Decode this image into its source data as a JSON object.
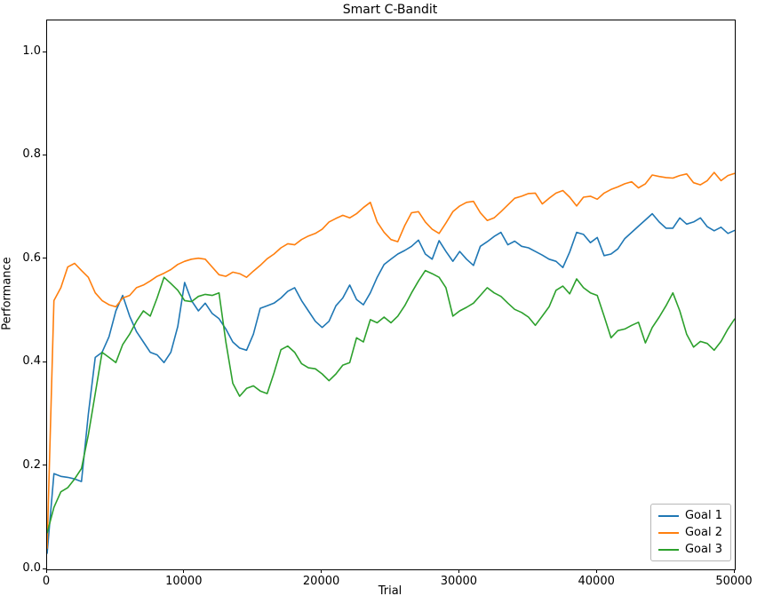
{
  "chart_data": {
    "type": "line",
    "title": "Smart C-Bandit",
    "xlabel": "Trial",
    "ylabel": "Performance",
    "xlim": [
      0,
      50000
    ],
    "ylim": [
      0,
      1.062
    ],
    "grid": false,
    "legend_position": "lower right",
    "x_ticks": [
      "0",
      "10000",
      "20000",
      "30000",
      "40000",
      "50000"
    ],
    "y_ticks": [
      "0.0",
      "0.2",
      "0.4",
      "0.6",
      "0.8",
      "1.0"
    ],
    "axis_color": "#000000",
    "background_color": "#ffffff",
    "x": [
      0,
      500,
      1000,
      1500,
      2000,
      2500,
      3000,
      3500,
      4000,
      4500,
      5000,
      5500,
      6000,
      6500,
      7000,
      7500,
      8000,
      8500,
      9000,
      9500,
      10000,
      10500,
      11000,
      11500,
      12000,
      12500,
      13000,
      13500,
      14000,
      14500,
      15000,
      15500,
      16000,
      16500,
      17000,
      17500,
      18000,
      18500,
      19000,
      19500,
      20000,
      20500,
      21000,
      21500,
      22000,
      22500,
      23000,
      23500,
      24000,
      24500,
      25000,
      25500,
      26000,
      26500,
      27000,
      27500,
      28000,
      28500,
      29000,
      29500,
      30000,
      30500,
      31000,
      31500,
      32000,
      32500,
      33000,
      33500,
      34000,
      34500,
      35000,
      35500,
      36000,
      36500,
      37000,
      37500,
      38000,
      38500,
      39000,
      39500,
      40000,
      40500,
      41000,
      41500,
      42000,
      42500,
      43000,
      43500,
      44000,
      44500,
      45000,
      45500,
      46000,
      46500,
      47000,
      47500,
      48000,
      48500,
      49000,
      49500,
      50000
    ],
    "series": [
      {
        "name": "Goal 1",
        "color": "#1f77b4",
        "values": [
          0.03,
          0.185,
          0.18,
          0.178,
          0.175,
          0.17,
          0.3,
          0.41,
          0.42,
          0.45,
          0.5,
          0.53,
          0.49,
          0.46,
          0.44,
          0.42,
          0.415,
          0.4,
          0.42,
          0.47,
          0.555,
          0.52,
          0.5,
          0.515,
          0.495,
          0.485,
          0.465,
          0.44,
          0.428,
          0.424,
          0.455,
          0.505,
          0.51,
          0.515,
          0.525,
          0.538,
          0.545,
          0.52,
          0.5,
          0.48,
          0.468,
          0.48,
          0.51,
          0.525,
          0.55,
          0.522,
          0.512,
          0.535,
          0.565,
          0.59,
          0.6,
          0.61,
          0.617,
          0.625,
          0.637,
          0.61,
          0.6,
          0.636,
          0.615,
          0.596,
          0.615,
          0.6,
          0.588,
          0.625,
          0.634,
          0.644,
          0.652,
          0.628,
          0.635,
          0.625,
          0.622,
          0.615,
          0.608,
          0.6,
          0.596,
          0.584,
          0.614,
          0.652,
          0.648,
          0.632,
          0.642,
          0.607,
          0.61,
          0.62,
          0.64,
          0.652,
          0.664,
          0.676,
          0.688,
          0.672,
          0.66,
          0.66,
          0.68,
          0.668,
          0.672,
          0.68,
          0.663,
          0.655,
          0.662,
          0.65,
          0.656
        ]
      },
      {
        "name": "Goal 2",
        "color": "#ff7f0e",
        "values": [
          0.04,
          0.52,
          0.545,
          0.585,
          0.592,
          0.578,
          0.565,
          0.535,
          0.52,
          0.512,
          0.508,
          0.525,
          0.53,
          0.545,
          0.55,
          0.558,
          0.567,
          0.573,
          0.58,
          0.59,
          0.596,
          0.6,
          0.602,
          0.6,
          0.585,
          0.57,
          0.567,
          0.575,
          0.572,
          0.565,
          0.577,
          0.588,
          0.601,
          0.61,
          0.622,
          0.63,
          0.628,
          0.638,
          0.645,
          0.65,
          0.658,
          0.672,
          0.679,
          0.685,
          0.68,
          0.688,
          0.7,
          0.71,
          0.672,
          0.652,
          0.638,
          0.634,
          0.665,
          0.69,
          0.692,
          0.672,
          0.658,
          0.65,
          0.67,
          0.692,
          0.703,
          0.71,
          0.712,
          0.69,
          0.675,
          0.68,
          0.692,
          0.705,
          0.718,
          0.722,
          0.727,
          0.728,
          0.707,
          0.718,
          0.728,
          0.733,
          0.72,
          0.703,
          0.72,
          0.722,
          0.716,
          0.728,
          0.735,
          0.74,
          0.746,
          0.75,
          0.738,
          0.746,
          0.763,
          0.76,
          0.758,
          0.757,
          0.762,
          0.765,
          0.748,
          0.744,
          0.752,
          0.768,
          0.752,
          0.762,
          0.766
        ]
      },
      {
        "name": "Goal 3",
        "color": "#2ca02c",
        "values": [
          0.07,
          0.12,
          0.15,
          0.158,
          0.175,
          0.195,
          0.26,
          0.34,
          0.42,
          0.41,
          0.4,
          0.435,
          0.455,
          0.48,
          0.5,
          0.49,
          0.525,
          0.565,
          0.553,
          0.54,
          0.52,
          0.518,
          0.528,
          0.532,
          0.53,
          0.535,
          0.44,
          0.36,
          0.335,
          0.35,
          0.355,
          0.345,
          0.34,
          0.38,
          0.425,
          0.432,
          0.42,
          0.398,
          0.39,
          0.388,
          0.378,
          0.365,
          0.378,
          0.395,
          0.4,
          0.448,
          0.44,
          0.483,
          0.477,
          0.488,
          0.477,
          0.49,
          0.51,
          0.535,
          0.558,
          0.578,
          0.572,
          0.565,
          0.545,
          0.49,
          0.5,
          0.507,
          0.515,
          0.53,
          0.545,
          0.535,
          0.528,
          0.515,
          0.503,
          0.497,
          0.488,
          0.472,
          0.49,
          0.508,
          0.54,
          0.548,
          0.533,
          0.562,
          0.545,
          0.535,
          0.53,
          0.49,
          0.448,
          0.462,
          0.465,
          0.472,
          0.478,
          0.438,
          0.468,
          0.488,
          0.51,
          0.535,
          0.5,
          0.455,
          0.43,
          0.441,
          0.437,
          0.424,
          0.441,
          0.465,
          0.485
        ]
      }
    ]
  }
}
